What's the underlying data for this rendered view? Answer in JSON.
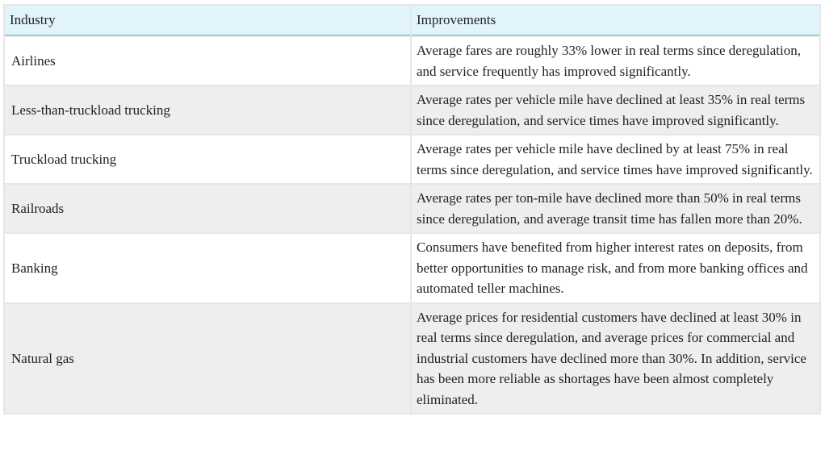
{
  "table": {
    "headers": [
      "Industry",
      "Improvements"
    ],
    "rows": [
      {
        "industry": "Airlines",
        "improvements": "Average fares are roughly 33% lower in real terms since deregulation, and service frequently has improved significantly."
      },
      {
        "industry": "Less-than-truckload trucking",
        "improvements": "Average rates per vehicle mile have declined at least 35% in real terms since deregulation, and service times have improved significantly."
      },
      {
        "industry": "Truckload trucking",
        "improvements": "Average rates per vehicle mile have declined by at least 75% in real terms since deregulation, and service times have improved significantly."
      },
      {
        "industry": "Railroads",
        "improvements": "Average rates per ton-mile have declined more than 50% in real terms since deregulation, and average transit time has fallen more than 20%."
      },
      {
        "industry": "Banking",
        "improvements": "Consumers have benefited from higher interest rates on deposits, from better opportunities to manage risk, and from more banking offices and automated teller machines."
      },
      {
        "industry": "Natural gas",
        "improvements": "Average prices for residential customers have declined at least 30% in real terms since deregulation, and average prices for commercial and industrial customers have declined more than 30%. In addition, service has been more reliable as shortages have been almost completely eliminated."
      }
    ]
  }
}
